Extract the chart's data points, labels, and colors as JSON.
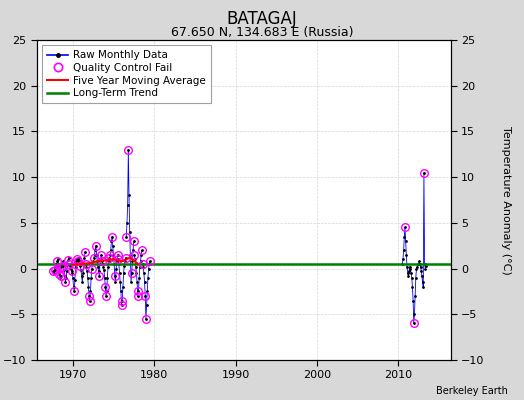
{
  "title": "BATAGAJ",
  "subtitle": "67.650 N, 134.683 E (Russia)",
  "ylabel_right": "Temperature Anomaly (°C)",
  "credit": "Berkeley Earth",
  "xlim": [
    1965.5,
    2016.5
  ],
  "ylim": [
    -10,
    25
  ],
  "yticks": [
    -10,
    -5,
    0,
    5,
    10,
    15,
    20,
    25
  ],
  "xticks": [
    1970,
    1980,
    1990,
    2000,
    2010
  ],
  "bg_color": "#d8d8d8",
  "plot_bg_color": "#ffffff",
  "long_term_trend_y": 0.5,
  "raw_monthly_1968_1979": [
    [
      1968,
      [
        -0.3,
        -0.5,
        -0.2,
        0.1,
        0.5,
        0.3,
        0.8,
        1.0,
        0.4,
        -0.6,
        -1.0,
        -0.8
      ]
    ],
    [
      1969,
      [
        0.2,
        0.5,
        0.8,
        0.3,
        -0.2,
        -0.8,
        -1.5,
        -1.0,
        -0.3,
        0.4,
        0.9,
        1.2
      ]
    ],
    [
      1970,
      [
        0.5,
        0.3,
        -0.1,
        -0.3,
        -0.5,
        -1.0,
        -2.0,
        -2.5,
        -1.2,
        0.2,
        0.8,
        1.0
      ]
    ],
    [
      1971,
      [
        0.8,
        1.0,
        1.2,
        0.8,
        0.3,
        -0.2,
        -0.8,
        -1.5,
        -0.5,
        0.5,
        1.2,
        1.8
      ]
    ],
    [
      1972,
      [
        0.5,
        0.2,
        -0.3,
        -1.0,
        -2.0,
        -3.0,
        -3.5,
        -2.5,
        -1.0,
        0.0,
        0.5,
        0.8
      ]
    ],
    [
      1973,
      [
        1.2,
        1.5,
        2.0,
        2.5,
        1.5,
        0.8,
        0.2,
        -0.3,
        -0.8,
        0.5,
        1.0,
        1.5
      ]
    ],
    [
      1974,
      [
        0.8,
        0.5,
        0.2,
        -0.2,
        -1.0,
        -2.0,
        -3.0,
        -2.5,
        -1.0,
        0.2,
        0.8,
        1.2
      ]
    ],
    [
      1975,
      [
        1.5,
        2.0,
        3.0,
        3.5,
        2.5,
        1.5,
        0.5,
        -0.8,
        -1.5,
        0.0,
        0.8,
        1.5
      ]
    ],
    [
      1976,
      [
        1.0,
        0.5,
        -0.5,
        -1.5,
        -2.5,
        -4.0,
        -3.5,
        -2.0,
        -0.5,
        0.3,
        0.8,
        1.2
      ]
    ],
    [
      1977,
      [
        3.5,
        5.0,
        7.0,
        13.0,
        8.0,
        4.0,
        1.5,
        -1.5,
        -0.5,
        0.8,
        2.0,
        3.0
      ]
    ],
    [
      1978,
      [
        1.5,
        1.0,
        0.2,
        -0.5,
        -1.5,
        -3.0,
        -2.5,
        -1.0,
        0.2,
        0.8,
        1.5,
        2.0
      ]
    ],
    [
      1979,
      [
        0.5,
        0.2,
        -0.5,
        -1.5,
        -3.0,
        -5.5,
        -4.0,
        -2.5,
        -1.0,
        0.0,
        0.5,
        0.8
      ]
    ]
  ],
  "raw_monthly_2011_2014": [
    [
      2011,
      [
        0.5,
        1.0,
        2.0,
        3.5,
        4.5,
        3.0,
        1.5,
        0.2,
        -0.5,
        -0.8,
        -0.3,
        0.2
      ]
    ],
    [
      2012,
      [
        0.0,
        -0.5,
        -1.0,
        -2.0,
        -3.5,
        -6.0,
        -5.0,
        -3.0,
        -1.0,
        0.0,
        0.2,
        0.5
      ]
    ],
    [
      2013,
      [
        0.5,
        0.8,
        0.5,
        0.2,
        -0.3,
        -0.8,
        -1.5,
        -2.0,
        10.5,
        0.5,
        0.0,
        0.3
      ]
    ]
  ],
  "qc_fail_1968_1979": [
    [
      1968,
      [
        0,
        2,
        6,
        9,
        11
      ]
    ],
    [
      1969,
      [
        0,
        3,
        6,
        10
      ]
    ],
    [
      1970,
      [
        0,
        3,
        7,
        11
      ]
    ],
    [
      1971,
      [
        0,
        4,
        11
      ]
    ],
    [
      1972,
      [
        0,
        5,
        6,
        9
      ]
    ],
    [
      1973,
      [
        0,
        3,
        8,
        11
      ]
    ],
    [
      1974,
      [
        0,
        5,
        6,
        11
      ]
    ],
    [
      1975,
      [
        0,
        3,
        7,
        11
      ]
    ],
    [
      1976,
      [
        0,
        5,
        6,
        11
      ]
    ],
    [
      1977,
      [
        0,
        3,
        8,
        11
      ]
    ],
    [
      1978,
      [
        0,
        5,
        6,
        11
      ]
    ],
    [
      1979,
      [
        0,
        4,
        5,
        11
      ]
    ]
  ],
  "qc_fail_2011_2014": [
    [
      2011,
      [
        4
      ]
    ],
    [
      2012,
      [
        5
      ]
    ],
    [
      2013,
      [
        8
      ]
    ]
  ],
  "five_year_avg_x": [
    1970,
    1971,
    1972,
    1973,
    1974,
    1975,
    1976,
    1977,
    1978
  ],
  "five_year_avg_y": [
    0.4,
    0.5,
    0.6,
    0.8,
    0.9,
    1.0,
    0.8,
    1.2,
    0.5
  ]
}
